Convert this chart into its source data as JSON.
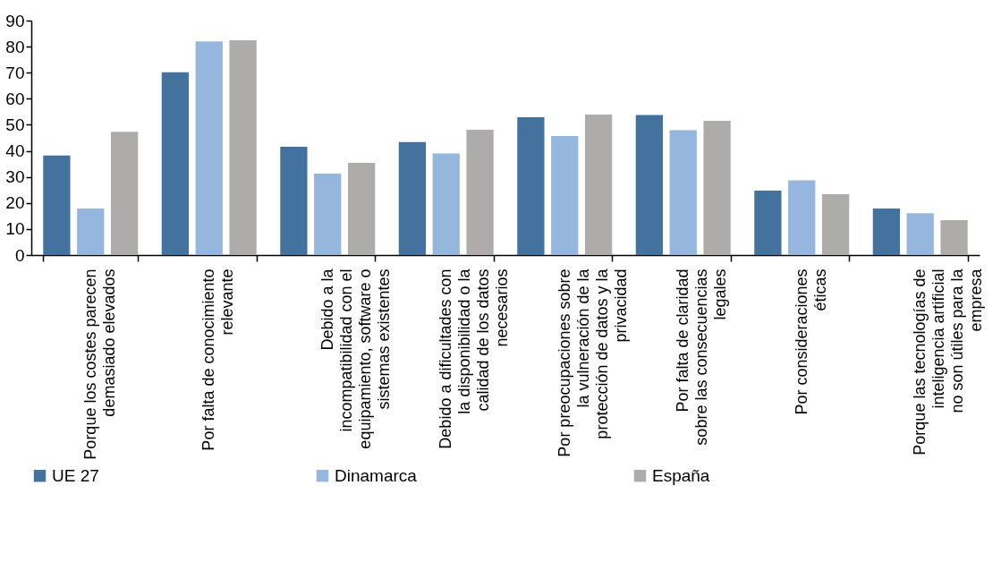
{
  "chart_data": {
    "type": "bar",
    "categories": [
      "Porque los costes parecen demasiado elevados",
      "Por falta de conocimiento relevante",
      "Debido a la incompatibilidad con el equipamiento, software o sistemas existentes",
      "Debido a dificultades con la disponibilidad o la calidad de los datos necesarios",
      "Por preocupaciones sobre la vulneración de la protección de datos y la privacidad",
      "Por falta de claridad sobre las consecuencias legales",
      "Por consideraciones éticas",
      "Porque las tecnologías de inteligencia artificial no son útiles para la empresa"
    ],
    "series": [
      {
        "name": "UE 27",
        "color": "#44729f",
        "values": [
          38.2,
          70.2,
          41.6,
          43.4,
          52.9,
          53.8,
          24.7,
          17.9
        ]
      },
      {
        "name": "Dinamarca",
        "color": "#95b7de",
        "values": [
          17.9,
          82.0,
          31.3,
          39.0,
          45.7,
          47.9,
          28.7,
          16.1
        ]
      },
      {
        "name": "España",
        "color": "#aeabab",
        "values": [
          47.3,
          82.4,
          35.4,
          48.1,
          53.9,
          51.5,
          23.4,
          13.4
        ]
      }
    ],
    "ylim": [
      0,
      90
    ],
    "yticks": [
      0,
      10,
      20,
      30,
      40,
      50,
      60,
      70,
      80,
      90
    ],
    "grid": false,
    "legend": "bottom"
  }
}
